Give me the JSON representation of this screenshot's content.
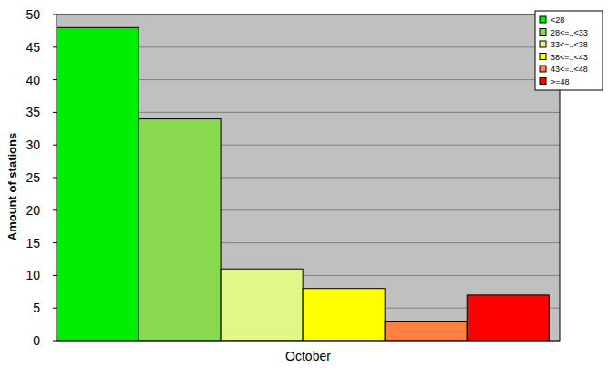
{
  "chart_data": {
    "type": "bar",
    "y_label": "Amount of stations",
    "categories": [
      "October"
    ],
    "series": [
      {
        "name": "<28",
        "color": "#00ee00",
        "values": [
          48
        ]
      },
      {
        "name": "28<=..<33",
        "color": "#88d850",
        "values": [
          34
        ]
      },
      {
        "name": "33<=..<38",
        "color": "#e0f888",
        "values": [
          11
        ]
      },
      {
        "name": "38<=..<43",
        "color": "#ffff00",
        "values": [
          8
        ]
      },
      {
        "name": "43<=..<48",
        "color": "#ff8040",
        "values": [
          3
        ]
      },
      {
        "name": ">=48",
        "color": "#ff0000",
        "values": [
          7
        ]
      }
    ],
    "ylim": [
      0,
      50
    ],
    "yticks": [
      0,
      5,
      10,
      15,
      20,
      25,
      30,
      35,
      40,
      45,
      50
    ],
    "grid": true,
    "legend": "upper right"
  }
}
